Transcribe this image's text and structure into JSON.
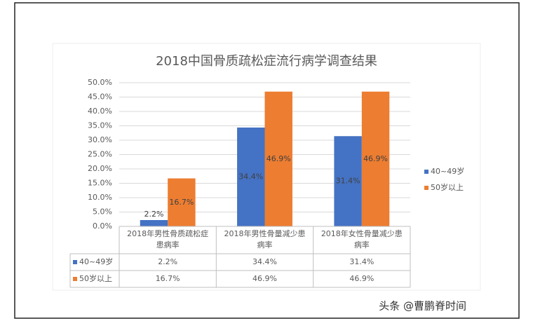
{
  "chart_data": {
    "type": "bar",
    "title": "2018中国骨质疏松症流行病学调查结果",
    "categories": [
      "2018年男性骨质疏松症患病率",
      "2018年男性骨量减少患病率",
      "2018年女性骨量减少患病率"
    ],
    "series": [
      {
        "name": "40~49岁",
        "color": "#4472c4",
        "values": [
          2.2,
          34.4,
          31.4
        ],
        "value_labels": [
          "2.2%",
          "34.4%",
          "31.4%"
        ]
      },
      {
        "name": "50岁以上",
        "color": "#ed7d31",
        "values": [
          16.7,
          46.9,
          46.9
        ],
        "value_labels": [
          "16.7%",
          "46.9%",
          "46.9%"
        ]
      }
    ],
    "ylim": [
      0,
      50
    ],
    "yticks": [
      {
        "value": 0,
        "label": "0.0%"
      },
      {
        "value": 5,
        "label": "5.0%"
      },
      {
        "value": 10,
        "label": "10.0%"
      },
      {
        "value": 15,
        "label": "15.0%"
      },
      {
        "value": 20,
        "label": "20.0%"
      },
      {
        "value": 25,
        "label": "25.0%"
      },
      {
        "value": 30,
        "label": "30.0%"
      },
      {
        "value": 35,
        "label": "35.0%"
      },
      {
        "value": 40,
        "label": "40.0%"
      },
      {
        "value": 45,
        "label": "45.0%"
      },
      {
        "value": 50,
        "label": "50.0%"
      }
    ],
    "grid": true,
    "legend": "right",
    "data_table": true
  },
  "watermark": "头条 @曹鹏脊时间"
}
